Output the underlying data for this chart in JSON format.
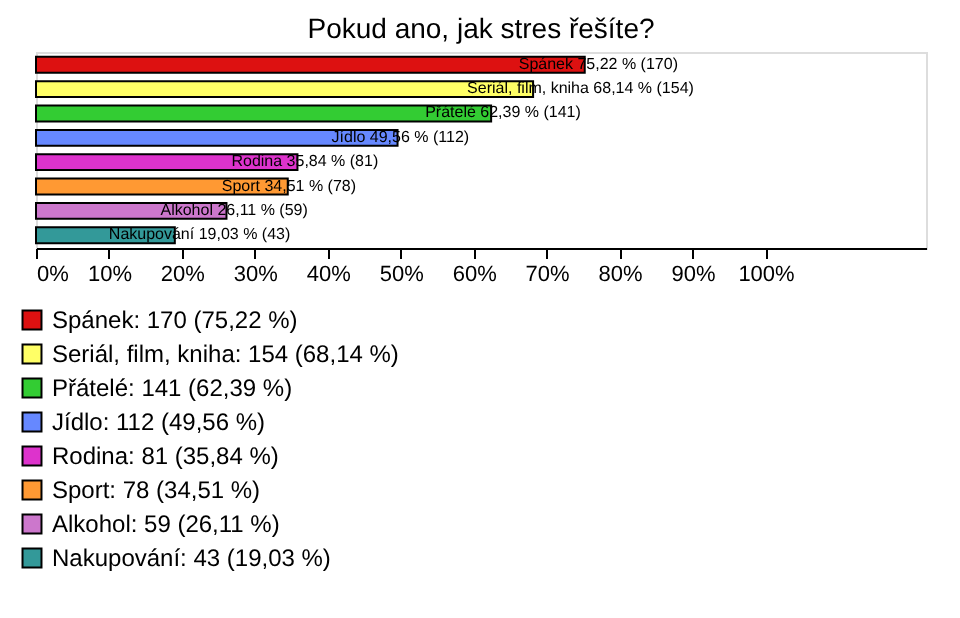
{
  "chart_data": {
    "type": "bar",
    "title": "Pokud ano, jak stres řešíte?",
    "orientation": "horizontal",
    "stacked": true,
    "categories": [
      null,
      null,
      null,
      null,
      null,
      null,
      null,
      null
    ],
    "xlim": [
      0,
      122
    ],
    "xticks": [
      {
        "value": 0,
        "label": "0%"
      },
      {
        "value": 10,
        "label": "10%"
      },
      {
        "value": 20,
        "label": "20%"
      },
      {
        "value": 30,
        "label": "30%"
      },
      {
        "value": 40,
        "label": "40%"
      },
      {
        "value": 50,
        "label": "50%"
      },
      {
        "value": 60,
        "label": "60%"
      },
      {
        "value": 70,
        "label": "70%"
      },
      {
        "value": 80,
        "label": "80%"
      },
      {
        "value": 90,
        "label": "90%"
      },
      {
        "value": 100,
        "label": "100%"
      }
    ],
    "grid": false,
    "legend": "bottom left",
    "series": [
      {
        "name": "Spánek: 170 (75,22 %)",
        "color": "#dd1111",
        "values": [
          75.22,
          null,
          null,
          null,
          null,
          null,
          null,
          null
        ],
        "value_labels": [
          "Spánek 75,22 % (170)",
          null,
          null,
          null,
          null,
          null,
          null,
          null
        ]
      },
      {
        "name": "Seriál, film, kniha: 154 (68,14 %)",
        "color": "#ffff66",
        "values": [
          null,
          68.14,
          null,
          null,
          null,
          null,
          null,
          null
        ],
        "value_labels": [
          null,
          "Seriál, film, kniha 68,14 % (154)",
          null,
          null,
          null,
          null,
          null,
          null
        ]
      },
      {
        "name": "Přátelé: 141 (62,39 %)",
        "color": "#33cc33",
        "values": [
          null,
          null,
          62.39,
          null,
          null,
          null,
          null,
          null
        ],
        "value_labels": [
          null,
          null,
          "Přátelé 62,39 % (141)",
          null,
          null,
          null,
          null,
          null
        ]
      },
      {
        "name": "Jídlo: 112 (49,56 %)",
        "color": "#6688ff",
        "values": [
          null,
          null,
          null,
          49.56,
          null,
          null,
          null,
          null
        ],
        "value_labels": [
          null,
          null,
          null,
          "Jídlo 49,56 % (112)",
          null,
          null,
          null,
          null
        ]
      },
      {
        "name": "Rodina: 81 (35,84 %)",
        "color": "#dd33cc",
        "values": [
          null,
          null,
          null,
          null,
          35.84,
          null,
          null,
          null
        ],
        "value_labels": [
          null,
          null,
          null,
          null,
          "Rodina 35,84 % (81)",
          null,
          null,
          null
        ]
      },
      {
        "name": "Sport: 78 (34,51 %)",
        "color": "#ff9933",
        "values": [
          null,
          null,
          null,
          null,
          null,
          34.51,
          null,
          null
        ],
        "value_labels": [
          null,
          null,
          null,
          null,
          null,
          "Sport 34,51 % (78)",
          null,
          null
        ]
      },
      {
        "name": "Alkohol: 59 (26,11 %)",
        "color": "#cc77cc",
        "values": [
          null,
          null,
          null,
          null,
          null,
          null,
          26.11,
          null
        ],
        "value_labels": [
          null,
          null,
          null,
          null,
          null,
          null,
          "Alkohol 26,11 % (59)",
          null
        ]
      },
      {
        "name": "Nakupování: 43 (19,03 %)",
        "color": "#339999",
        "values": [
          null,
          null,
          null,
          null,
          null,
          null,
          null,
          19.03
        ],
        "value_labels": [
          null,
          null,
          null,
          null,
          null,
          null,
          null,
          "Nakupování 19,03 % (43)"
        ]
      }
    ]
  }
}
